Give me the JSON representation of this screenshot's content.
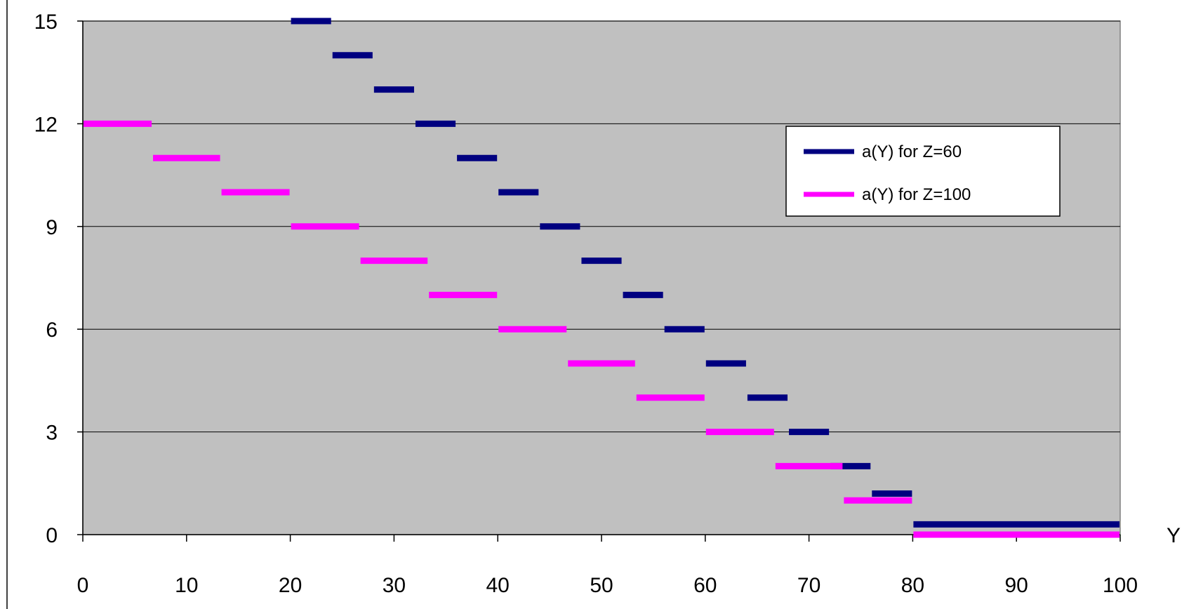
{
  "chart_data": {
    "type": "line",
    "title": "",
    "xlabel": "Y",
    "ylabel": "",
    "xlim": [
      0,
      100
    ],
    "ylim": [
      0,
      15
    ],
    "x_ticks": [
      0,
      10,
      20,
      30,
      40,
      50,
      60,
      70,
      80,
      90,
      100
    ],
    "x_tick_labels": [
      "0",
      "10",
      "20",
      "30",
      "40",
      "50",
      "60",
      "70",
      "80",
      "90",
      "100"
    ],
    "y_ticks": [
      0,
      3,
      6,
      9,
      12,
      15
    ],
    "y_tick_labels": [
      "0",
      "3",
      "6",
      "9",
      "12",
      "15"
    ],
    "grid": "horizontal",
    "plot_background": "#c0c0c0",
    "legend_position": "upper-right",
    "series": [
      {
        "name": "a(Y) for Z=60",
        "color": "#000080",
        "style": "step",
        "segments": [
          {
            "x0": 20,
            "x1": 24,
            "y": 15
          },
          {
            "x0": 24,
            "x1": 28,
            "y": 14
          },
          {
            "x0": 28,
            "x1": 32,
            "y": 13
          },
          {
            "x0": 32,
            "x1": 36,
            "y": 12
          },
          {
            "x0": 36,
            "x1": 40,
            "y": 11
          },
          {
            "x0": 40,
            "x1": 44,
            "y": 10
          },
          {
            "x0": 44,
            "x1": 48,
            "y": 9
          },
          {
            "x0": 48,
            "x1": 52,
            "y": 8
          },
          {
            "x0": 52,
            "x1": 56,
            "y": 7
          },
          {
            "x0": 56,
            "x1": 60,
            "y": 6
          },
          {
            "x0": 60,
            "x1": 64,
            "y": 5
          },
          {
            "x0": 64,
            "x1": 68,
            "y": 4
          },
          {
            "x0": 68,
            "x1": 72,
            "y": 3
          },
          {
            "x0": 72,
            "x1": 76,
            "y": 2
          },
          {
            "x0": 76,
            "x1": 80,
            "y": 1.2
          },
          {
            "x0": 80,
            "x1": 100,
            "y": 0.3
          }
        ]
      },
      {
        "name": "a(Y) for Z=100",
        "color": "#ff00ff",
        "style": "step",
        "segments": [
          {
            "x0": 0,
            "x1": 6.7,
            "y": 12
          },
          {
            "x0": 6.7,
            "x1": 13.3,
            "y": 11
          },
          {
            "x0": 13.3,
            "x1": 20,
            "y": 10
          },
          {
            "x0": 20,
            "x1": 26.7,
            "y": 9
          },
          {
            "x0": 26.7,
            "x1": 33.3,
            "y": 8
          },
          {
            "x0": 33.3,
            "x1": 40,
            "y": 7
          },
          {
            "x0": 40,
            "x1": 46.7,
            "y": 6
          },
          {
            "x0": 46.7,
            "x1": 53.3,
            "y": 5
          },
          {
            "x0": 53.3,
            "x1": 60,
            "y": 4
          },
          {
            "x0": 60,
            "x1": 66.7,
            "y": 3
          },
          {
            "x0": 66.7,
            "x1": 73.3,
            "y": 2
          },
          {
            "x0": 73.3,
            "x1": 80,
            "y": 1
          },
          {
            "x0": 80,
            "x1": 100,
            "y": 0
          }
        ]
      }
    ]
  }
}
